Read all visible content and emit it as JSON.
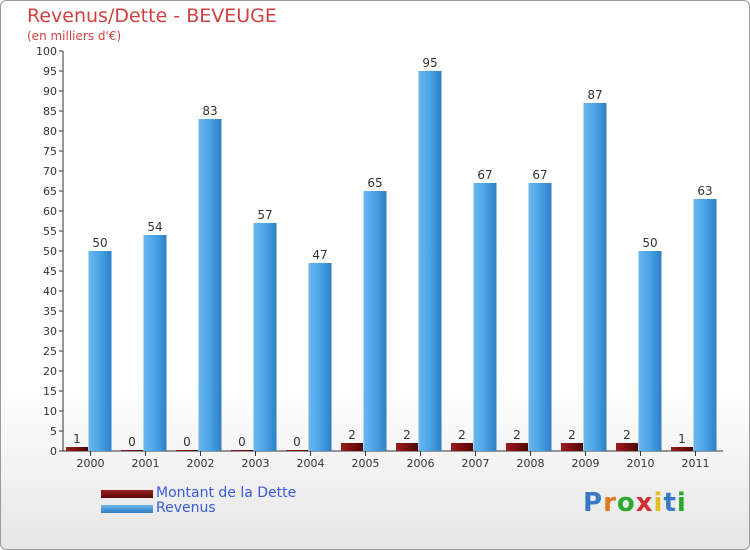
{
  "chart_data": {
    "type": "bar",
    "title": "Revenus/Dette - BEVEUGE",
    "subtitle": "(en milliers d'€)",
    "categories": [
      "2000",
      "2001",
      "2002",
      "2003",
      "2004",
      "2005",
      "2006",
      "2007",
      "2008",
      "2009",
      "2010",
      "2011"
    ],
    "series": [
      {
        "name": "Montant de la Dette",
        "color": "#7a0f0f",
        "values": [
          1,
          0,
          0,
          0,
          0,
          2,
          2,
          2,
          2,
          2,
          2,
          1
        ]
      },
      {
        "name": "Revenus",
        "color": "#4a9ee0",
        "values": [
          50,
          54,
          83,
          57,
          47,
          65,
          95,
          67,
          67,
          87,
          50,
          63
        ]
      }
    ],
    "ylim": [
      0,
      100
    ],
    "ytick_step": 5,
    "grid": false,
    "legend": "bottom-left"
  },
  "brand": {
    "letters": [
      "P",
      "r",
      "o",
      "x",
      "i",
      "t",
      "i"
    ],
    "colors": [
      "#3a78c8",
      "#e07a20",
      "#2da82d",
      "#d03030",
      "#e0c020",
      "#3a78c8",
      "#2da82d"
    ]
  }
}
